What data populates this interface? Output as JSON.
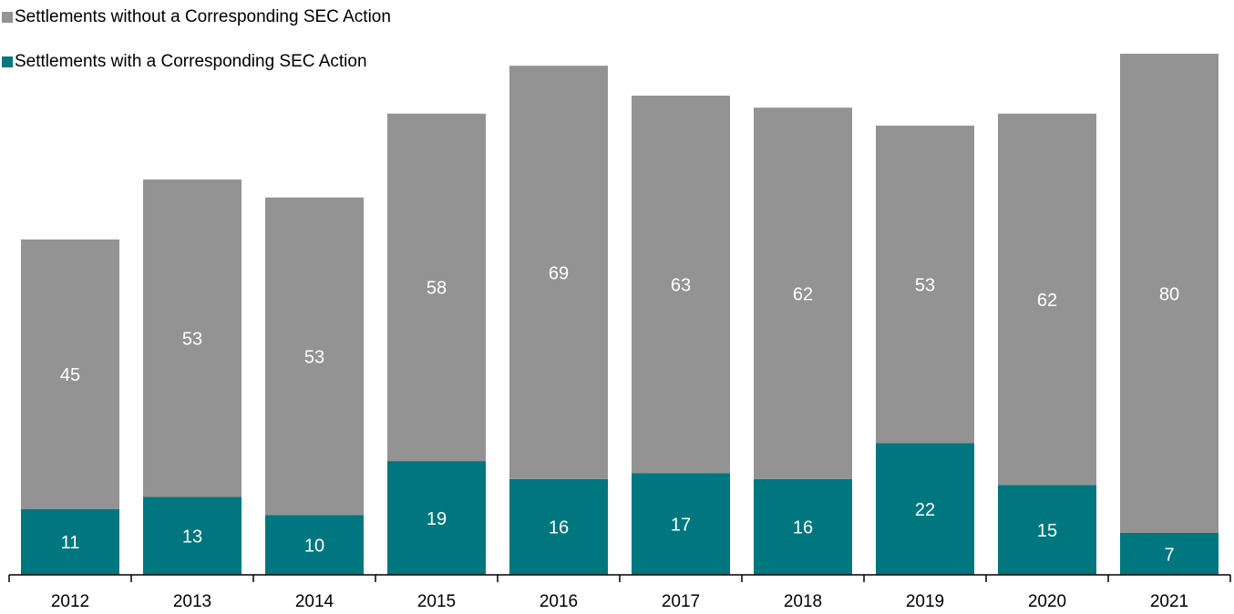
{
  "chart_data": {
    "type": "stacked_bar",
    "categories": [
      "2012",
      "2013",
      "2014",
      "2015",
      "2016",
      "2017",
      "2018",
      "2019",
      "2020",
      "2021"
    ],
    "series": [
      {
        "name": "Settlements with a Corresponding SEC Action",
        "color": "#00777e",
        "values": [
          11,
          13,
          10,
          19,
          16,
          17,
          16,
          22,
          15,
          7
        ]
      },
      {
        "name": "Settlements without a Corresponding SEC Action",
        "color": "#939393",
        "values": [
          45,
          53,
          53,
          58,
          69,
          63,
          62,
          53,
          62,
          80
        ]
      }
    ],
    "legend": "top-left"
  }
}
